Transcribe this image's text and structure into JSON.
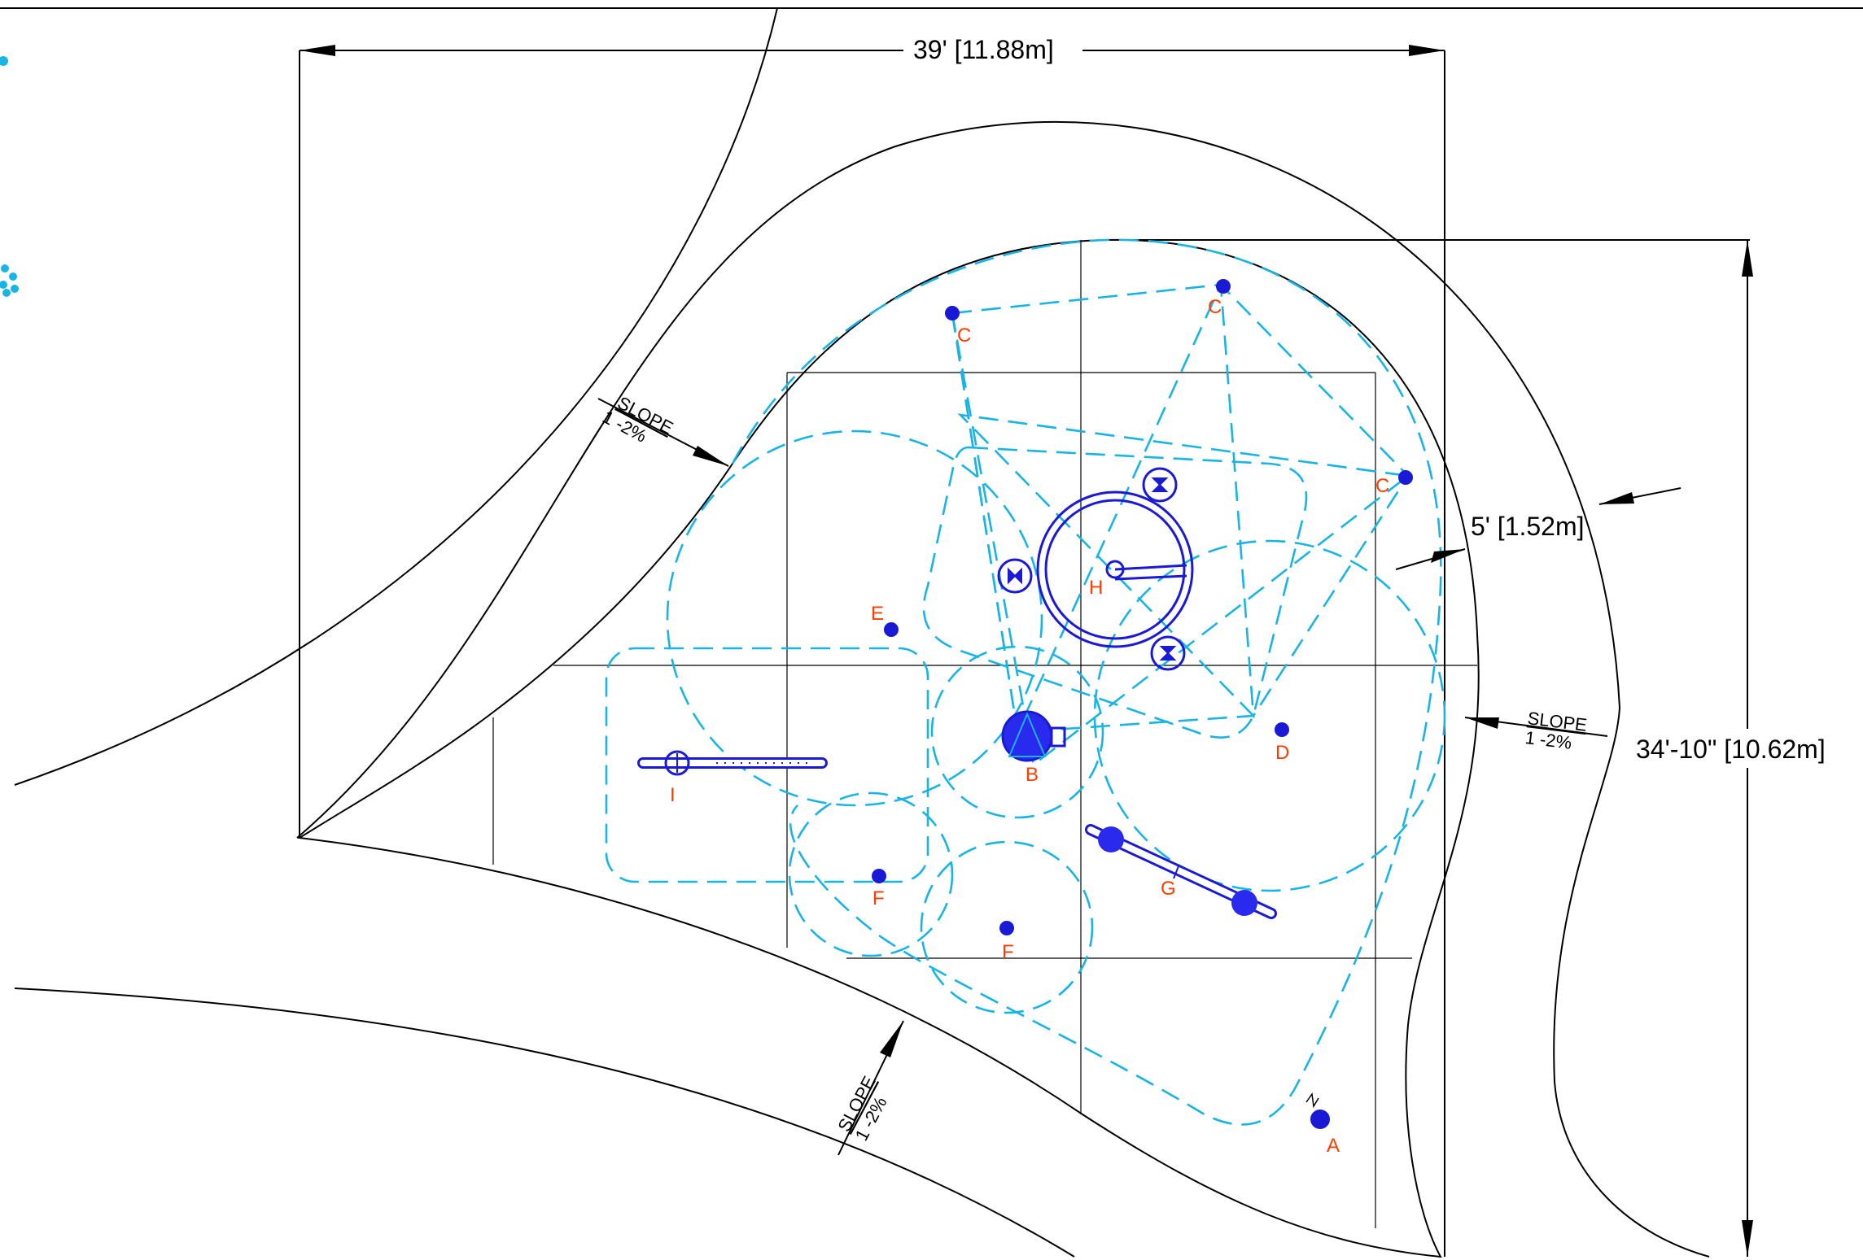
{
  "dimensions": {
    "width": "39' [11.88m]",
    "height": "34'-10\" [10.62m]",
    "offset": "5' [1.52m]"
  },
  "slope_notes": [
    {
      "title": "SLOPE",
      "value": "1 -2%"
    },
    {
      "title": "SLOPE",
      "value": "1 -2%"
    },
    {
      "title": "SLOPE",
      "value": "1 -2%"
    }
  ],
  "fixture_labels": {
    "a": "A",
    "b": "B",
    "c1": "C",
    "c2": "C",
    "c3": "C",
    "d": "D",
    "e": "E",
    "f1": "F",
    "f2": "F",
    "g": "G",
    "h": "H",
    "i": "I"
  },
  "colors": {
    "spray_pattern": "#19b4e6",
    "fixture": "#1a1ad6",
    "label": "#ff3d00",
    "linework": "#000000"
  }
}
